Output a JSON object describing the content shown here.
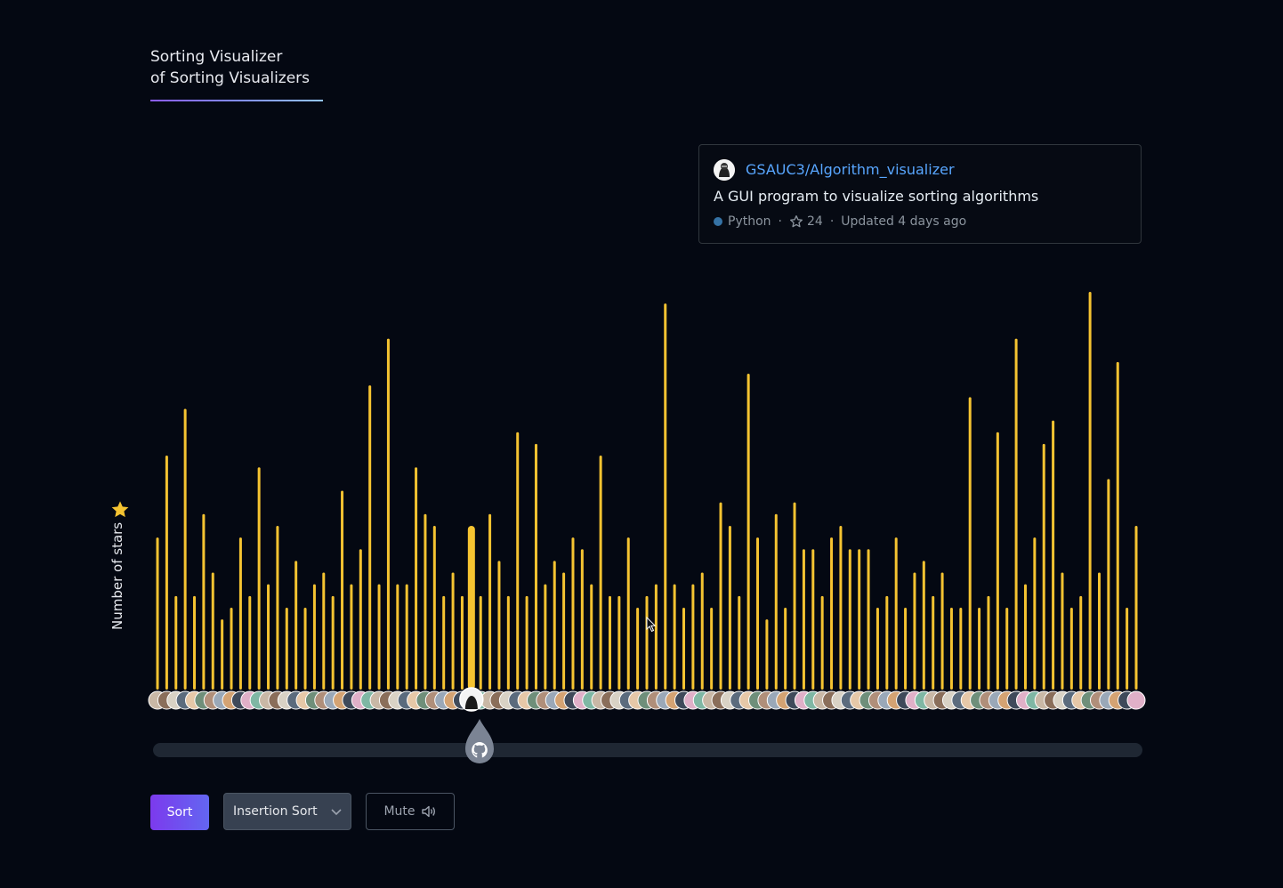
{
  "header": {
    "title_line1": "Sorting Visualizer",
    "title_line2": "of Sorting Visualizers"
  },
  "repo_card": {
    "name": "GSAUC3/Algorithm_visualizer",
    "description": "A GUI program to visualize sorting algorithms",
    "language": "Python",
    "language_color": "#3572a5",
    "stars": "24",
    "updated": "Updated 4 days ago"
  },
  "axis": {
    "y_label": "Number of stars",
    "y_icon": "star-icon"
  },
  "controls": {
    "sort_label": "Sort",
    "algorithm_selected": "Insertion Sort",
    "mute_label": "Mute",
    "slider_value": 0.33
  },
  "colors": {
    "bar": "#f5c331",
    "accent_start": "#7c3aed",
    "accent_end": "#6366f1",
    "background": "#040812"
  },
  "chart_data": {
    "type": "bar",
    "highlighted_index": 34,
    "values": [
      13,
      20,
      8,
      24,
      8,
      15,
      10,
      6,
      7,
      13,
      8,
      19,
      9,
      14,
      7,
      11,
      7,
      9,
      10,
      8,
      17,
      9,
      12,
      26,
      9,
      30,
      9,
      9,
      19,
      15,
      14,
      8,
      10,
      8,
      14,
      8,
      15,
      11,
      8,
      22,
      8,
      21,
      9,
      11,
      10,
      13,
      12,
      9,
      20,
      8,
      8,
      13,
      7,
      8,
      9,
      33,
      9,
      7,
      9,
      10,
      7,
      16,
      14,
      8,
      27,
      13,
      6,
      15,
      7,
      16,
      12,
      12,
      8,
      13,
      14,
      12,
      12,
      12,
      7,
      8,
      13,
      7,
      10,
      11,
      8,
      10,
      7,
      7,
      25,
      7,
      8,
      22,
      7,
      30,
      9,
      13,
      21,
      23,
      10,
      7,
      8,
      34,
      10,
      18,
      28,
      7,
      14
    ]
  }
}
